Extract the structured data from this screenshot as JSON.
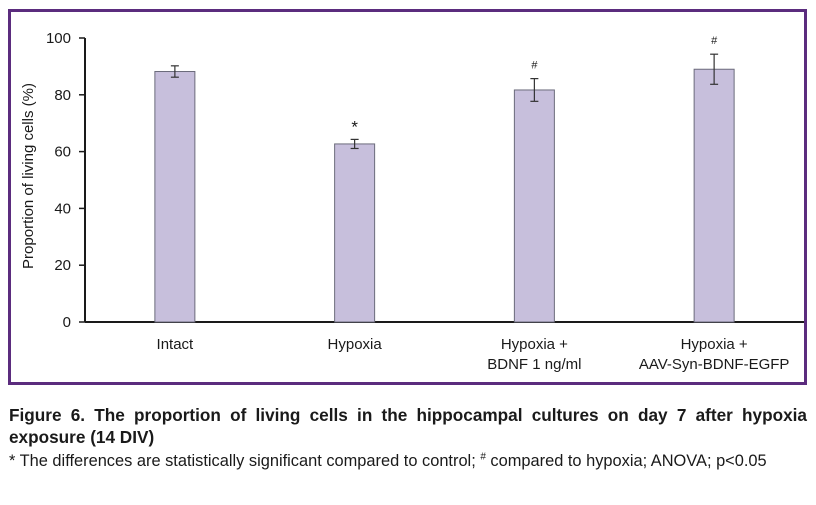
{
  "chart_data": {
    "type": "bar",
    "categories": [
      [
        "Intact"
      ],
      [
        "Hypoxia"
      ],
      [
        "Hypoxia +",
        "BDNF 1 ng/ml"
      ],
      [
        "Hypoxia +",
        "AAV-Syn-BDNF-EGFP"
      ]
    ],
    "values": [
      88.2,
      62.7,
      81.7,
      89.0
    ],
    "errors": [
      2.0,
      1.6,
      4.0,
      5.3
    ],
    "significance": [
      "",
      "*",
      "#",
      "#"
    ],
    "ylabel": "Proportion of living cells (%)",
    "xlabel": "",
    "ylim": [
      0,
      100
    ],
    "yticks": [
      0,
      20,
      40,
      60,
      80,
      100
    ],
    "grid": false,
    "legend": "none",
    "colors": {
      "bar_fill": "#c7bfdc",
      "bar_stroke": "#6b6b7b",
      "axis": "#1a1a1a",
      "frame": "#5b2c7e"
    }
  },
  "caption": {
    "title": "Figure 6. The proportion of living cells in the hippocampal cultures on day 7 after hypoxia exposure (14 DIV)",
    "note_part1": "* The differences are statistically significant compared to control; ",
    "note_hash": "#",
    "note_part2": " compared to hypoxia; ANOVA; p<0.05"
  }
}
